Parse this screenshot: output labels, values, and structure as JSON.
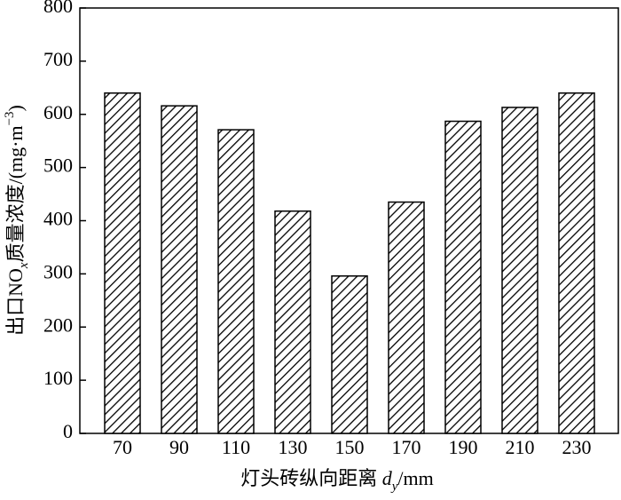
{
  "chart_data": {
    "type": "bar",
    "xlabel": [
      "灯头砖纵向距离 ",
      "d",
      "y",
      "/mm"
    ],
    "ylabel": [
      "出口NO",
      "x",
      "质量浓度/(mg·m",
      "−3",
      ")"
    ],
    "categories": [
      "70",
      "90",
      "110",
      "130",
      "150",
      "170",
      "190",
      "210",
      "230"
    ],
    "values": [
      640,
      616,
      571,
      418,
      296,
      435,
      587,
      613,
      640
    ],
    "color": "#000000",
    "ylim": [
      0,
      800
    ],
    "yticks": [
      0,
      100,
      200,
      300,
      400,
      500,
      600,
      700,
      800
    ],
    "grid": false
  }
}
